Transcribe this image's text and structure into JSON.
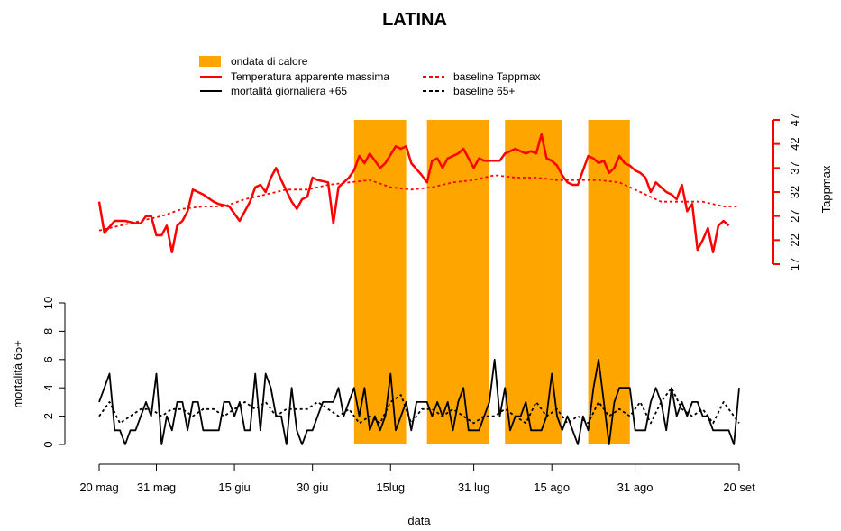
{
  "chart_data": {
    "type": "line",
    "title": "LATINA",
    "xlabel": "data",
    "x_tick_labels": [
      "20 mag",
      "31 mag",
      "15 giu",
      "30 giu",
      "15lug",
      "31 lug",
      "15 ago",
      "31 ago",
      "20 set"
    ],
    "x_tick_days": [
      0,
      11,
      26,
      41,
      56,
      72,
      87,
      103,
      123
    ],
    "x_range_days": [
      0,
      123
    ],
    "colors": {
      "heatwave": "#ffa500",
      "temperature": "#ff0000",
      "mortality": "#000000"
    },
    "legend": {
      "position": "top-center",
      "entries": [
        {
          "label": "ondata di calore",
          "kind": "patch",
          "color": "#ffa500"
        },
        {
          "label": "Temperatura apparente massima",
          "kind": "line",
          "color": "#ff0000",
          "dash": "solid"
        },
        {
          "label": "mortalità giornaliera +65",
          "kind": "line",
          "color": "#000000",
          "dash": "solid"
        },
        {
          "label": "baseline Tappmax",
          "kind": "line",
          "color": "#ff0000",
          "dash": "dashed"
        },
        {
          "label": "baseline 65+",
          "kind": "line",
          "color": "#000000",
          "dash": "dashed"
        }
      ]
    },
    "heatwaves_days": [
      [
        49,
        59
      ],
      [
        63,
        75
      ],
      [
        78,
        89
      ],
      [
        94,
        102
      ]
    ],
    "temperature_axis": {
      "ylabel": "Tappmax",
      "side": "right",
      "ylim": [
        17,
        47
      ],
      "ticks": [
        17,
        22,
        27,
        32,
        37,
        42,
        47
      ],
      "series": [
        {
          "name": "Temperatura apparente massima",
          "dash": "solid",
          "day": [
            0,
            1,
            3,
            5,
            7,
            8,
            9,
            10,
            11,
            12,
            13,
            14,
            15,
            16,
            17,
            18,
            20,
            22,
            23,
            25,
            27,
            29,
            30,
            31,
            32,
            33,
            34,
            35,
            37,
            38,
            39,
            40,
            41,
            42,
            44,
            45,
            46,
            47,
            48,
            49,
            50,
            51,
            52,
            54,
            55,
            57,
            58,
            59,
            60,
            62,
            63,
            64,
            65,
            66,
            67,
            68,
            69,
            70,
            71,
            72,
            73,
            74,
            75,
            77,
            78,
            79,
            80,
            81,
            82,
            83,
            84,
            85,
            86,
            87,
            88,
            89,
            90,
            91,
            92,
            93,
            94,
            95,
            96,
            97,
            98,
            99,
            100,
            101,
            102,
            103,
            104,
            105,
            106,
            107,
            108,
            109,
            110,
            111,
            112,
            113,
            114,
            115,
            116,
            117,
            118,
            119,
            120,
            121,
            122,
            123
          ],
          "values": [
            30,
            23.5,
            26,
            26,
            25.5,
            25.5,
            27,
            27,
            23,
            23,
            25,
            19.5,
            25,
            26,
            28,
            32.5,
            31.5,
            30,
            29.5,
            29,
            26,
            30,
            33,
            33.5,
            32,
            35,
            37,
            34.5,
            30,
            28.5,
            30.5,
            31,
            35,
            34.5,
            34,
            25.5,
            33,
            34,
            35,
            36.5,
            39.5,
            38,
            40,
            37,
            38,
            41.5,
            41,
            41.5,
            38,
            35.5,
            34,
            38.5,
            39,
            37,
            39,
            39.5,
            40,
            41,
            39,
            37,
            39,
            38.5,
            38.5,
            38.5,
            40,
            40.5,
            41,
            40.5,
            40,
            40.5,
            40,
            44,
            39,
            38.5,
            37.5,
            35.5,
            34,
            33.5,
            33.5,
            36.5,
            39.5,
            39,
            38,
            38.5,
            36,
            37,
            39.5,
            38,
            37.5,
            36.5,
            36,
            35,
            32,
            34,
            33,
            32,
            31.5,
            30.5,
            33.5,
            28,
            29.5,
            20,
            22,
            24.5,
            19.5,
            25,
            26,
            25
          ]
        },
        {
          "name": "baseline Tappmax",
          "dash": "dashed",
          "day": [
            0,
            4,
            8,
            12,
            16,
            20,
            24,
            28,
            32,
            36,
            40,
            44,
            48,
            52,
            56,
            60,
            64,
            68,
            72,
            76,
            80,
            84,
            88,
            92,
            96,
            100,
            104,
            108,
            112,
            116,
            120,
            123
          ],
          "values": [
            24,
            25,
            26,
            27,
            28.5,
            29,
            29,
            30.5,
            31.5,
            32.5,
            32.5,
            33.5,
            34,
            34.5,
            33,
            32.5,
            33,
            34,
            34.5,
            35.5,
            35,
            35,
            34.5,
            34.5,
            34.5,
            34,
            32,
            30,
            30,
            30,
            29,
            29
          ]
        }
      ]
    },
    "mortality_axis": {
      "ylabel": "mortalità 65+",
      "side": "left",
      "ylim": [
        0,
        10
      ],
      "ticks": [
        0,
        2,
        4,
        6,
        8,
        10
      ],
      "series": [
        {
          "name": "mortalità giornaliera +65",
          "dash": "solid",
          "day": [
            0,
            1,
            2,
            3,
            4,
            5,
            6,
            7,
            8,
            9,
            10,
            11,
            12,
            13,
            14,
            15,
            16,
            17,
            18,
            19,
            20,
            21,
            22,
            23,
            24,
            25,
            26,
            27,
            28,
            29,
            30,
            31,
            32,
            33,
            34,
            35,
            36,
            37,
            38,
            39,
            40,
            41,
            42,
            43,
            44,
            45,
            46,
            47,
            48,
            49,
            50,
            51,
            52,
            53,
            54,
            55,
            56,
            57,
            58,
            59,
            60,
            61,
            62,
            63,
            64,
            65,
            66,
            67,
            68,
            69,
            70,
            71,
            72,
            73,
            74,
            75,
            76,
            77,
            78,
            79,
            80,
            81,
            82,
            83,
            84,
            85,
            86,
            87,
            88,
            89,
            90,
            91,
            92,
            93,
            94,
            95,
            96,
            97,
            98,
            99,
            100,
            101,
            102,
            103,
            104,
            105,
            106,
            107,
            108,
            109,
            110,
            111,
            112,
            113,
            114,
            115,
            116,
            117,
            118,
            119,
            120,
            121,
            122,
            123
          ],
          "values": [
            3,
            4,
            5,
            1,
            1,
            0,
            1,
            1,
            2,
            3,
            2,
            5,
            0,
            2,
            1,
            3,
            3,
            1,
            3,
            3,
            1,
            1,
            1,
            1,
            3,
            3,
            2,
            3,
            1,
            1,
            5,
            1,
            5,
            4,
            2,
            2,
            0,
            4,
            1,
            0,
            1,
            1,
            2,
            3,
            3,
            3,
            4,
            2,
            3,
            4,
            2,
            4,
            1,
            2,
            1,
            2,
            5,
            1,
            2,
            3,
            1,
            3,
            3,
            3,
            2,
            3,
            2,
            3,
            1,
            3,
            4,
            1,
            1,
            1,
            2,
            3,
            6,
            2,
            4,
            1,
            2,
            2,
            3,
            1,
            1,
            1,
            2,
            5,
            2,
            1,
            2,
            1,
            0,
            2,
            1,
            4,
            6,
            3,
            0,
            3,
            4,
            4,
            4,
            1,
            1,
            1,
            3,
            4,
            3,
            1,
            4,
            2,
            3,
            2,
            3,
            3,
            2,
            2,
            1,
            1,
            1,
            1,
            0,
            4,
            2
          ]
        },
        {
          "name": "baseline 65+",
          "dash": "dashed",
          "day": [
            0,
            2,
            4,
            6,
            8,
            10,
            12,
            14,
            16,
            18,
            20,
            22,
            24,
            26,
            28,
            30,
            32,
            34,
            36,
            38,
            40,
            42,
            44,
            46,
            48,
            50,
            52,
            54,
            56,
            58,
            60,
            62,
            64,
            66,
            68,
            70,
            72,
            74,
            76,
            78,
            80,
            82,
            84,
            86,
            88,
            90,
            92,
            94,
            96,
            98,
            100,
            102,
            104,
            106,
            108,
            110,
            112,
            114,
            116,
            118,
            120,
            122,
            123
          ],
          "values": [
            2,
            3,
            1.5,
            2,
            2.5,
            2.5,
            2,
            2.5,
            2.5,
            2,
            2.5,
            2.5,
            2,
            2.5,
            3,
            2.5,
            3,
            2,
            2.5,
            2.5,
            2.5,
            3,
            2.5,
            2,
            2.5,
            1.5,
            2,
            1.5,
            3,
            3.5,
            1.5,
            2.5,
            2.5,
            2,
            2.5,
            2,
            1.5,
            2,
            2,
            2.5,
            2,
            1.5,
            3,
            2,
            2.5,
            1.5,
            2,
            1.5,
            3,
            2,
            2.5,
            2,
            3,
            1.5,
            3,
            4,
            2.5,
            2,
            2.5,
            1.5,
            3,
            2,
            1.5
          ]
        }
      ]
    }
  }
}
